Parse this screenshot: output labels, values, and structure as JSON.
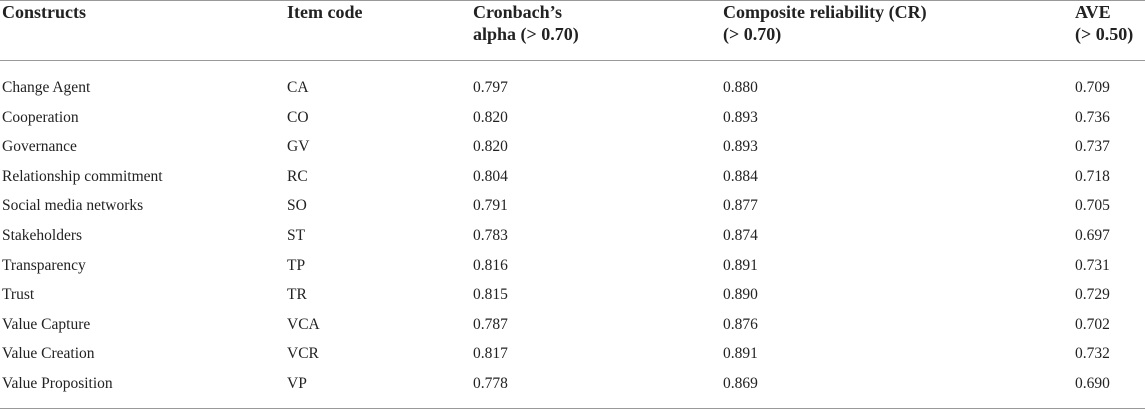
{
  "table": {
    "header": [
      [
        "Constructs"
      ],
      [
        "Item code"
      ],
      [
        "Cronbach’s",
        "alpha (> 0.70)"
      ],
      [
        "Composite reliability (CR)",
        "(> 0.70)"
      ],
      [
        "AVE",
        "(> 0.50)"
      ]
    ],
    "rows": [
      [
        "Change Agent",
        "CA",
        "0.797",
        "0.880",
        "0.709"
      ],
      [
        "Cooperation",
        "CO",
        "0.820",
        "0.893",
        "0.736"
      ],
      [
        "Governance",
        "GV",
        "0.820",
        "0.893",
        "0.737"
      ],
      [
        "Relationship commitment",
        "RC",
        "0.804",
        "0.884",
        "0.718"
      ],
      [
        "Social media networks",
        "SO",
        "0.791",
        "0.877",
        "0.705"
      ],
      [
        "Stakeholders",
        "ST",
        "0.783",
        "0.874",
        "0.697"
      ],
      [
        "Transparency",
        "TP",
        "0.816",
        "0.891",
        "0.731"
      ],
      [
        "Trust",
        "TR",
        "0.815",
        "0.890",
        "0.729"
      ],
      [
        "Value Capture",
        "VCA",
        "0.787",
        "0.876",
        "0.702"
      ],
      [
        "Value Creation",
        "VCR",
        "0.817",
        "0.891",
        "0.732"
      ],
      [
        "Value Proposition",
        "VP",
        "0.778",
        "0.869",
        "0.690"
      ]
    ]
  }
}
